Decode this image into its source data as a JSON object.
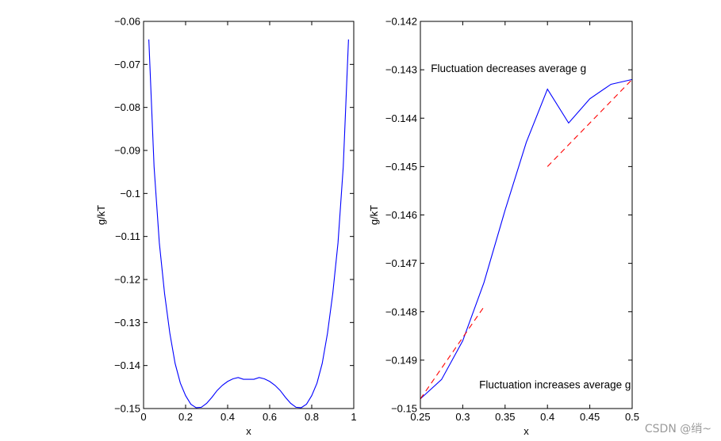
{
  "chart_data": [
    {
      "type": "line",
      "title": "",
      "xlabel": "x",
      "ylabel": "g/kT",
      "xlim": [
        0,
        1
      ],
      "ylim": [
        -0.15,
        -0.06
      ],
      "xticks": [
        0,
        0.2,
        0.4,
        0.6,
        0.8,
        1
      ],
      "xtick_labels": [
        "0",
        "0.2",
        "0.4",
        "0.6",
        "0.8",
        "1"
      ],
      "yticks": [
        -0.15,
        -0.14,
        -0.13,
        -0.12,
        -0.11,
        -0.1,
        -0.09,
        -0.08,
        -0.07,
        -0.06
      ],
      "ytick_labels": [
        "−0.15",
        "−0.14",
        "−0.13",
        "−0.12",
        "−0.11",
        "−0.1",
        "−0.09",
        "−0.08",
        "−0.07",
        "−0.06"
      ],
      "grid": false,
      "series": [
        {
          "color": "#0000ff",
          "style": "solid",
          "x": [
            0.025,
            0.05,
            0.075,
            0.1,
            0.125,
            0.15,
            0.175,
            0.2,
            0.225,
            0.25,
            0.275,
            0.3,
            0.325,
            0.35,
            0.375,
            0.4,
            0.425,
            0.45,
            0.475,
            0.5,
            0.525,
            0.55,
            0.575,
            0.6,
            0.625,
            0.65,
            0.675,
            0.7,
            0.725,
            0.75,
            0.775,
            0.8,
            0.825,
            0.85,
            0.875,
            0.9,
            0.925,
            0.95,
            0.975
          ],
          "y": [
            -0.0642,
            -0.0938,
            -0.1115,
            -0.1233,
            -0.1325,
            -0.1395,
            -0.1441,
            -0.147,
            -0.149,
            -0.1498,
            -0.1497,
            -0.1488,
            -0.1474,
            -0.1458,
            -0.1446,
            -0.1437,
            -0.1431,
            -0.1428,
            -0.1432,
            -0.1432,
            -0.1432,
            -0.1428,
            -0.1431,
            -0.1437,
            -0.1446,
            -0.1458,
            -0.1474,
            -0.1488,
            -0.1497,
            -0.1498,
            -0.149,
            -0.147,
            -0.1441,
            -0.1395,
            -0.1325,
            -0.1233,
            -0.1115,
            -0.0938,
            -0.0642
          ]
        }
      ]
    },
    {
      "type": "line",
      "title": "",
      "xlabel": "x",
      "ylabel": "g/kT",
      "xlim": [
        0.25,
        0.5
      ],
      "ylim": [
        -0.15,
        -0.142
      ],
      "xticks": [
        0.25,
        0.3,
        0.35,
        0.4,
        0.45,
        0.5
      ],
      "xtick_labels": [
        "0.25",
        "0.3",
        "0.35",
        "0.4",
        "0.45",
        "0.5"
      ],
      "yticks": [
        -0.15,
        -0.149,
        -0.148,
        -0.147,
        -0.146,
        -0.145,
        -0.144,
        -0.143,
        -0.142
      ],
      "ytick_labels": [
        "−0.15",
        "−0.149",
        "−0.148",
        "−0.147",
        "−0.146",
        "−0.145",
        "−0.144",
        "−0.143",
        "−0.142"
      ],
      "grid": false,
      "series": [
        {
          "color": "#0000ff",
          "style": "solid",
          "x": [
            0.25,
            0.275,
            0.3,
            0.325,
            0.35,
            0.375,
            0.4,
            0.425,
            0.45,
            0.475,
            0.5
          ],
          "y": [
            -0.1498,
            -0.1494,
            -0.1486,
            -0.1474,
            -0.1459,
            -0.1445,
            -0.1434,
            -0.1441,
            -0.1436,
            -0.1433,
            -0.1432
          ]
        },
        {
          "color": "#ff0000",
          "style": "dashed",
          "x": [
            0.25,
            0.325
          ],
          "y": [
            -0.1498,
            -0.1479
          ]
        },
        {
          "color": "#ff0000",
          "style": "dashed",
          "x": [
            0.4,
            0.5
          ],
          "y": [
            -0.145,
            -0.1432
          ]
        }
      ],
      "annotations": [
        {
          "text": "Fluctuation decreases average g",
          "x": 0.253,
          "y": -0.14305
        },
        {
          "text": "Fluctuation increases average g",
          "x": 0.31,
          "y": -0.14958
        }
      ]
    }
  ],
  "watermark": "CSDN @绡~"
}
